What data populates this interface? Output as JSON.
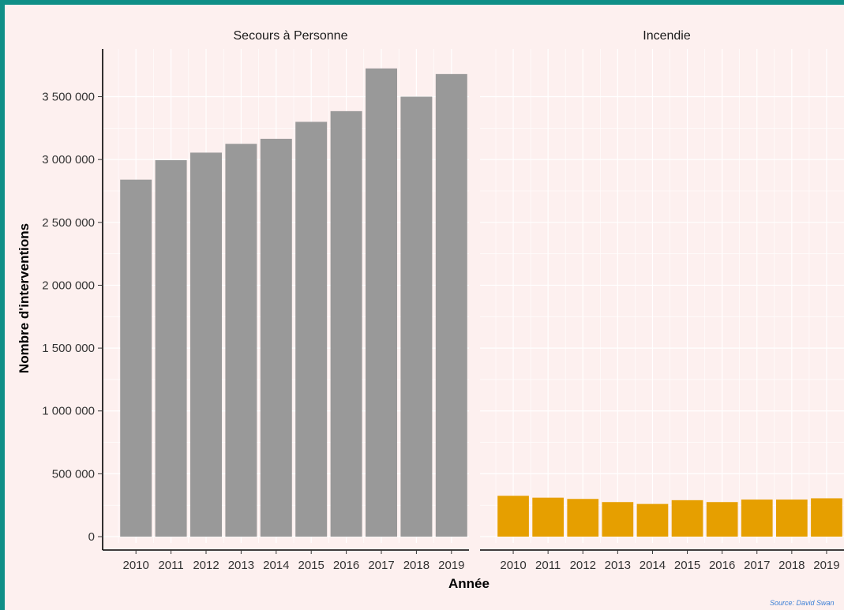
{
  "chart_data": {
    "type": "bar",
    "panels": [
      {
        "name": "Secours à Personne",
        "color": "#999999",
        "categories": [
          "2010",
          "2011",
          "2012",
          "2013",
          "2014",
          "2015",
          "2016",
          "2017",
          "2018",
          "2019"
        ],
        "values": [
          2840000,
          2995000,
          3055000,
          3125000,
          3165000,
          3300000,
          3385000,
          3725000,
          3500000,
          3680000
        ]
      },
      {
        "name": "Incendie",
        "color": "#e69f00",
        "categories": [
          "2010",
          "2011",
          "2012",
          "2013",
          "2014",
          "2015",
          "2016",
          "2017",
          "2018",
          "2019"
        ],
        "values": [
          325000,
          310000,
          300000,
          275000,
          260000,
          290000,
          275000,
          295000,
          295000,
          305000
        ]
      }
    ],
    "ylabel": "Nombre d'interventions",
    "xlabel": "Année",
    "ylim": [
      -50000,
      3880000
    ],
    "yticks": [
      0,
      500000,
      1000000,
      1500000,
      2000000,
      2500000,
      3000000,
      3500000
    ],
    "ytick_labels": [
      "0",
      "500 000",
      "1 000 000",
      "1 500 000",
      "2 000 000",
      "2 500 000",
      "3 000 000",
      "3 500 000"
    ],
    "grid": true,
    "caption": "Source: David Swan",
    "background": "#fdf0ef",
    "border_color": "#0f8f87"
  }
}
